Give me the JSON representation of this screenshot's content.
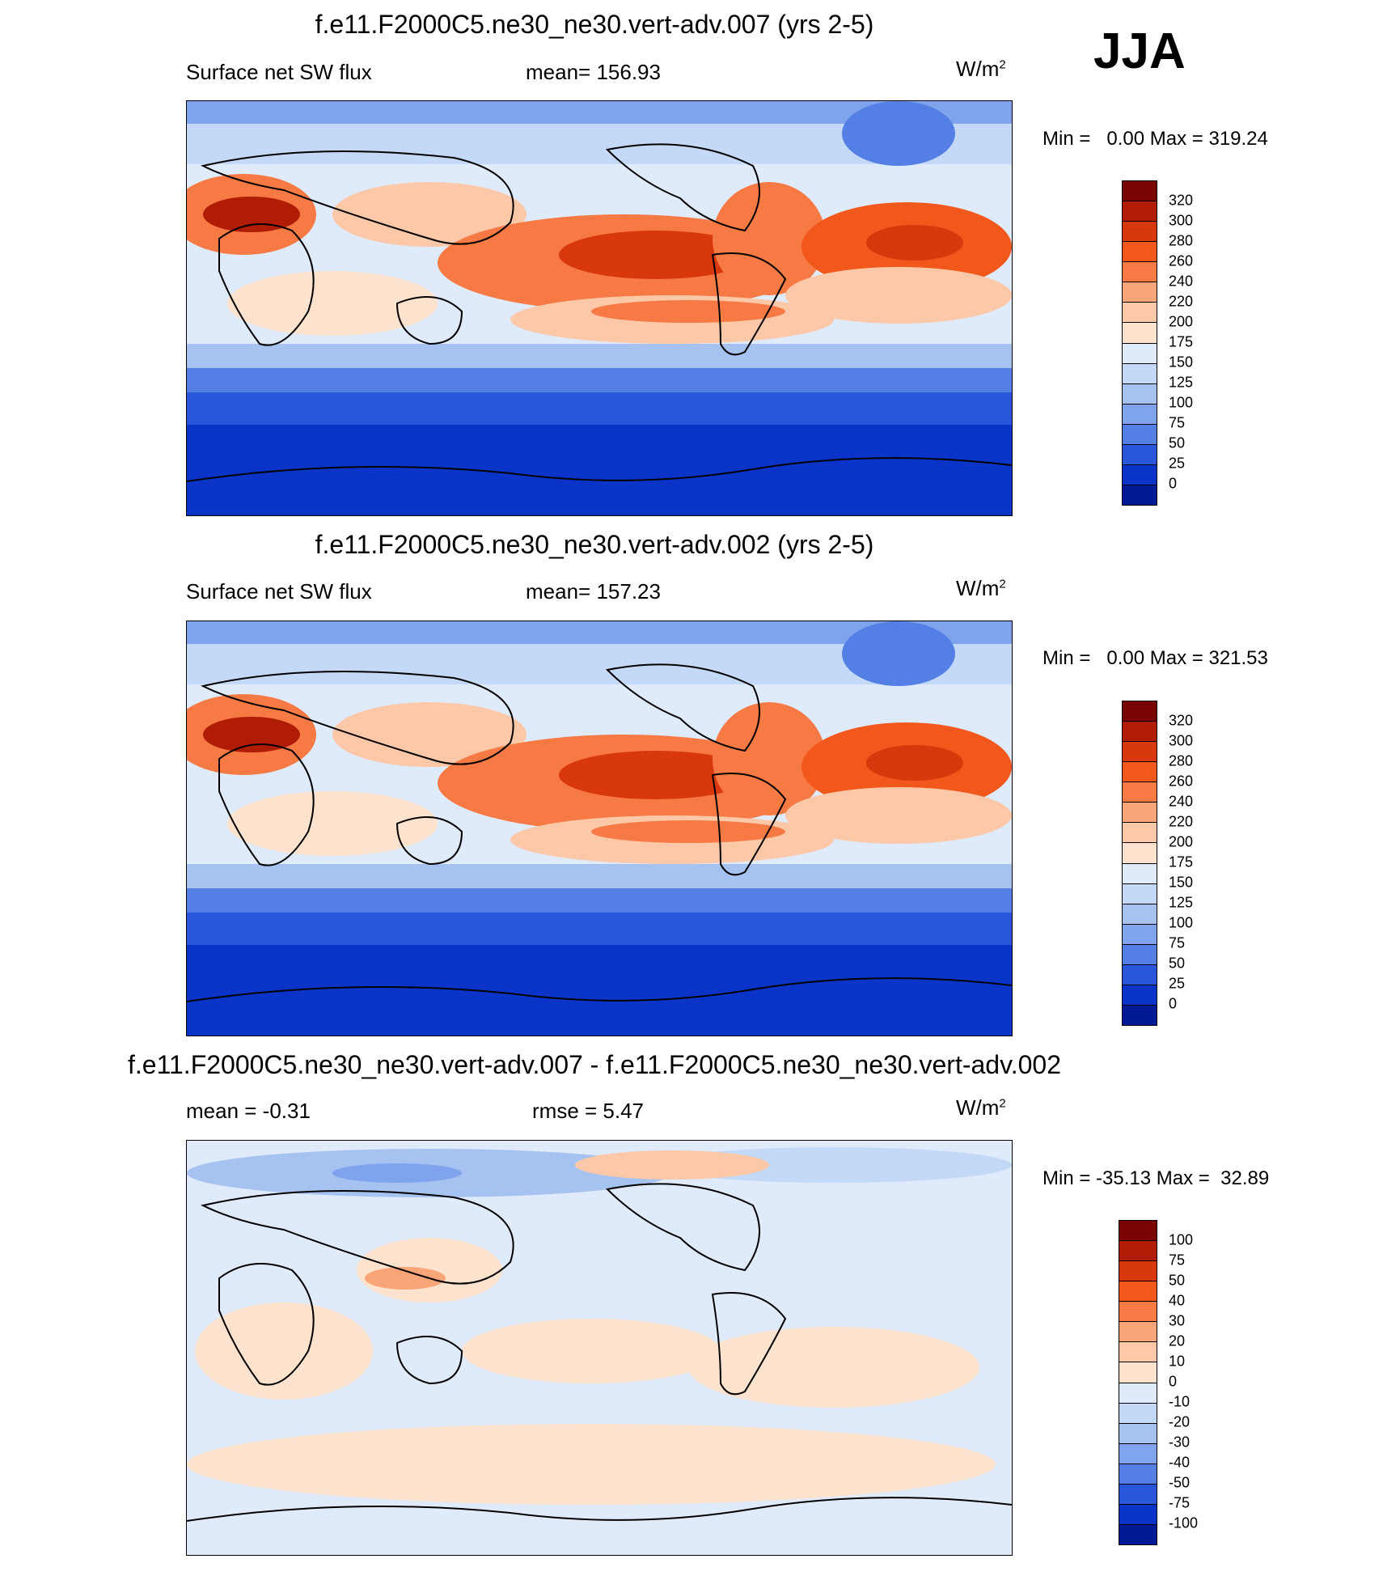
{
  "season": "JJA",
  "panels": [
    {
      "id": "p1",
      "title": "f.e11.F2000C5.ne30_ne30.vert-adv.007 (yrs 2-5)",
      "left_label": "Surface net SW flux",
      "center_label": "mean= 156.93",
      "units_base": "W/m",
      "units_exp": "2",
      "min_label": "Min =",
      "min_value": "0.00",
      "max_label": "Max =",
      "max_value": "319.24",
      "colorbar": {
        "labels": [
          "320",
          "300",
          "280",
          "260",
          "240",
          "220",
          "200",
          "175",
          "150",
          "125",
          "100",
          "75",
          "50",
          "25",
          "0"
        ],
        "colors": [
          "#7a0404",
          "#b01c04",
          "#d9370c",
          "#f2581c",
          "#f77a45",
          "#f9a577",
          "#fcc8a8",
          "#fde3cd",
          "#dfeafb",
          "#c4d9f7",
          "#a6c2f1",
          "#7fa3ec",
          "#5480e6",
          "#2a57da",
          "#0a34c8",
          "#021a96"
        ]
      }
    },
    {
      "id": "p2",
      "title": "f.e11.F2000C5.ne30_ne30.vert-adv.002 (yrs 2-5)",
      "left_label": "Surface net SW flux",
      "center_label": "mean= 157.23",
      "units_base": "W/m",
      "units_exp": "2",
      "min_label": "Min =",
      "min_value": "0.00",
      "max_label": "Max =",
      "max_value": "321.53",
      "colorbar": {
        "labels": [
          "320",
          "300",
          "280",
          "260",
          "240",
          "220",
          "200",
          "175",
          "150",
          "125",
          "100",
          "75",
          "50",
          "25",
          "0"
        ],
        "colors": [
          "#7a0404",
          "#b01c04",
          "#d9370c",
          "#f2581c",
          "#f77a45",
          "#f9a577",
          "#fcc8a8",
          "#fde3cd",
          "#dfeafb",
          "#c4d9f7",
          "#a6c2f1",
          "#7fa3ec",
          "#5480e6",
          "#2a57da",
          "#0a34c8",
          "#021a96"
        ]
      }
    },
    {
      "id": "p3",
      "title": "f.e11.F2000C5.ne30_ne30.vert-adv.007 - f.e11.F2000C5.ne30_ne30.vert-adv.002",
      "left_label": "mean =  -0.31",
      "center_label": "rmse =   5.47",
      "units_base": "W/m",
      "units_exp": "2",
      "min_label": "Min =",
      "min_value": "-35.13",
      "max_label": "Max =",
      "max_value": "32.89",
      "colorbar": {
        "labels": [
          "100",
          "75",
          "50",
          "40",
          "30",
          "20",
          "10",
          "0",
          "-10",
          "-20",
          "-30",
          "-40",
          "-50",
          "-75",
          "-100"
        ],
        "colors": [
          "#7a0404",
          "#b01c04",
          "#d9370c",
          "#f2581c",
          "#f77a45",
          "#f9a577",
          "#fcc8a8",
          "#fde3cd",
          "#dfeafb",
          "#c4d9f7",
          "#a6c2f1",
          "#7fa3ec",
          "#5480e6",
          "#2a57da",
          "#0a34c8",
          "#021a96"
        ]
      }
    }
  ],
  "chart_data": [
    {
      "type": "heatmap",
      "title": "f.e11.F2000C5.ne30_ne30.vert-adv.007 (yrs 2-5)",
      "variable": "Surface net SW flux",
      "mean": 156.93,
      "min": 0.0,
      "max": 319.24,
      "units": "W/m2",
      "levels": [
        0,
        25,
        50,
        75,
        100,
        125,
        150,
        175,
        200,
        220,
        240,
        260,
        280,
        300,
        320
      ]
    },
    {
      "type": "heatmap",
      "title": "f.e11.F2000C5.ne30_ne30.vert-adv.002 (yrs 2-5)",
      "variable": "Surface net SW flux",
      "mean": 157.23,
      "min": 0.0,
      "max": 321.53,
      "units": "W/m2",
      "levels": [
        0,
        25,
        50,
        75,
        100,
        125,
        150,
        175,
        200,
        220,
        240,
        260,
        280,
        300,
        320
      ]
    },
    {
      "type": "heatmap",
      "title": "f.e11.F2000C5.ne30_ne30.vert-adv.007 - f.e11.F2000C5.ne30_ne30.vert-adv.002",
      "mean": -0.31,
      "rmse": 5.47,
      "min": -35.13,
      "max": 32.89,
      "units": "W/m2",
      "levels": [
        -100,
        -75,
        -50,
        -40,
        -30,
        -20,
        -10,
        0,
        10,
        20,
        30,
        40,
        50,
        75,
        100
      ]
    }
  ]
}
